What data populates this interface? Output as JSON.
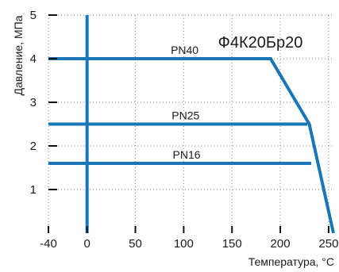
{
  "chart_data": {
    "type": "line",
    "title": "Ф4К20Бр20",
    "xlabel": "Температура, °C",
    "ylabel": "Давление, МПа",
    "xlim": [
      -40,
      255
    ],
    "ylim": [
      0,
      5
    ],
    "x_ticks": [
      -40,
      0,
      50,
      100,
      150,
      200,
      250
    ],
    "y_ticks": [
      1,
      2,
      3,
      4,
      5
    ],
    "grid": "dotted",
    "colors": {
      "series": "#1976b8",
      "axis": "#111111",
      "grid": "#8a8a8a"
    },
    "series": [
      {
        "name": "PN40",
        "x": [
          -40,
          190,
          230,
          255
        ],
        "y": [
          4.0,
          4.0,
          2.5,
          0
        ]
      },
      {
        "name": "PN25",
        "x": [
          -40,
          228
        ],
        "y": [
          2.5,
          2.5
        ]
      },
      {
        "name": "PN16",
        "x": [
          -40,
          232
        ],
        "y": [
          1.6,
          1.6
        ]
      }
    ],
    "reference_lines": [
      {
        "axis": "x",
        "value": 0
      }
    ]
  }
}
